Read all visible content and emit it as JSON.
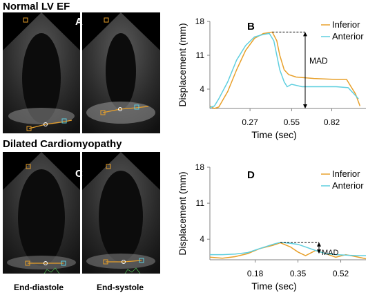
{
  "headings": {
    "normal": "Normal LV EF",
    "dilated": "Dilated Cardiomyopathy"
  },
  "panel_labels": {
    "A": "A",
    "B": "B",
    "C": "C",
    "D": "D"
  },
  "captions": {
    "end_diastole": "End-diastole",
    "end_systole": "End-systole"
  },
  "colors": {
    "inferior": "#E8A02A",
    "anterior": "#5FCFDF",
    "axis": "#808080"
  },
  "chart_data": [
    {
      "type": "line",
      "panel": "B",
      "xlabel": "Time (sec)",
      "ylabel": "Displacement (mm)",
      "xlim": [
        0,
        1.05
      ],
      "ylim": [
        0,
        18
      ],
      "xticks": [
        0.27,
        0.55,
        0.82
      ],
      "xtick_labels": [
        "0.27",
        "0.55",
        "0.82"
      ],
      "yticks": [
        4,
        11,
        18
      ],
      "ytick_labels": [
        "4",
        "11",
        "18"
      ],
      "annotation": "MAD",
      "legend_position": "top-right",
      "series": [
        {
          "name": "Inferior",
          "x": [
            0,
            0.03,
            0.06,
            0.12,
            0.18,
            0.24,
            0.3,
            0.36,
            0.42,
            0.45,
            0.47,
            0.5,
            0.53,
            0.58,
            0.7,
            0.85,
            0.92,
            0.98,
            1.01
          ],
          "y": [
            0.5,
            0,
            0.3,
            3.5,
            8,
            12,
            14.5,
            15.5,
            15.8,
            14,
            11,
            8,
            7,
            6.5,
            6.2,
            6,
            6,
            3,
            0.5
          ]
        },
        {
          "name": "Anterior",
          "x": [
            0,
            0.03,
            0.06,
            0.12,
            0.18,
            0.24,
            0.3,
            0.36,
            0.4,
            0.43,
            0.45,
            0.47,
            0.5,
            0.52,
            0.55,
            0.62,
            0.7,
            0.85,
            0.93,
            0.97,
            1.0
          ],
          "y": [
            0.2,
            0.5,
            2,
            5.5,
            10,
            13,
            14.8,
            15.3,
            15.5,
            14,
            11,
            8,
            5.5,
            4.5,
            5,
            4.5,
            4.5,
            4.5,
            4.3,
            3,
            2
          ]
        }
      ]
    },
    {
      "type": "line",
      "panel": "D",
      "xlabel": "Time (sec)",
      "ylabel": "Displacement (mm)",
      "xlim": [
        0,
        0.62
      ],
      "ylim": [
        0,
        18
      ],
      "xticks": [
        0.18,
        0.35,
        0.52
      ],
      "xtick_labels": [
        "0.18",
        "0.35",
        "0.52"
      ],
      "yticks": [
        4,
        11,
        18
      ],
      "ytick_labels": [
        "4",
        "11",
        "18"
      ],
      "annotation": "MAD",
      "legend_position": "top-right",
      "series": [
        {
          "name": "Inferior",
          "x": [
            0,
            0.05,
            0.1,
            0.15,
            0.2,
            0.25,
            0.28,
            0.32,
            0.35,
            0.38,
            0.42,
            0.46,
            0.5,
            0.54,
            0.58,
            0.62
          ],
          "y": [
            0.5,
            0.3,
            0.6,
            1.2,
            2.2,
            2.8,
            3.3,
            2.5,
            1.5,
            0.8,
            1.8,
            1.2,
            0.5,
            1.0,
            0.6,
            0.2
          ]
        },
        {
          "name": "Anterior",
          "x": [
            0,
            0.05,
            0.1,
            0.15,
            0.2,
            0.25,
            0.28,
            0.32,
            0.35,
            0.38,
            0.42,
            0.46,
            0.5,
            0.54,
            0.58,
            0.62
          ],
          "y": [
            1.0,
            1.0,
            1.1,
            1.4,
            2.2,
            3.0,
            3.4,
            3.2,
            3.0,
            2.5,
            1.8,
            1.2,
            1.0,
            0.9,
            0.8,
            0.8
          ]
        }
      ]
    }
  ]
}
